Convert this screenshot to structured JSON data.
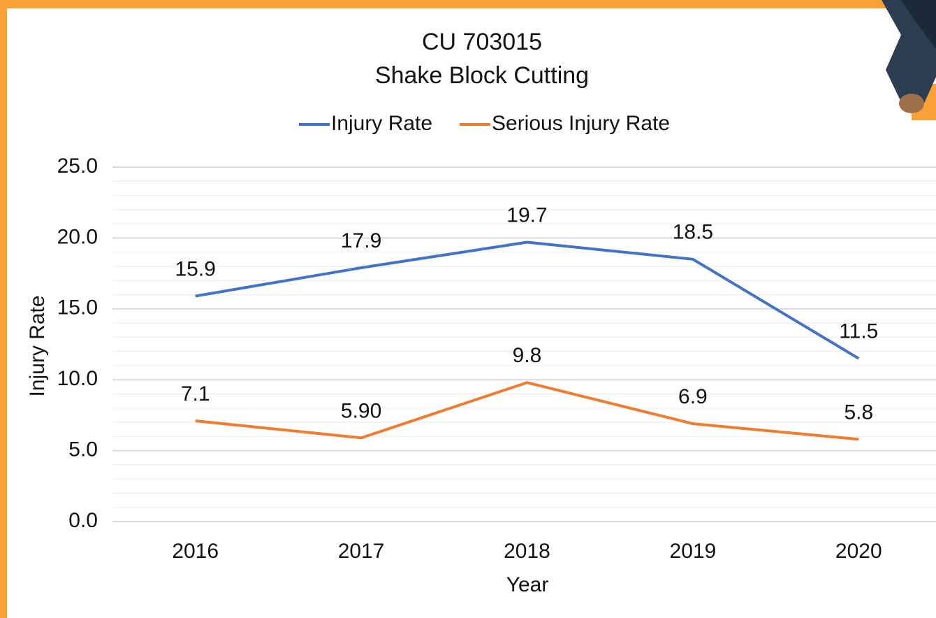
{
  "chart_data": {
    "type": "line",
    "title": [
      "CU 703015",
      "Shake Block Cutting"
    ],
    "x_label": "Year",
    "y_label": "Injury Rate",
    "categories": [
      "2016",
      "2017",
      "2018",
      "2019",
      "2020"
    ],
    "series": [
      {
        "name": "Injury Rate",
        "color": "#4472c4",
        "values": [
          15.9,
          17.9,
          19.7,
          18.5,
          11.5
        ]
      },
      {
        "name": "Serious Injury Rate",
        "color": "#ed7d31",
        "values": [
          7.1,
          5.9,
          9.8,
          6.9,
          5.8
        ],
        "value_labels": [
          "7.1",
          "5.90",
          "9.8",
          "6.9",
          "5.8"
        ]
      }
    ],
    "ylim": [
      0,
      25
    ],
    "yticks": [
      {
        "value": 0,
        "label": "0.0"
      },
      {
        "value": 5,
        "label": "5.0"
      },
      {
        "value": 10,
        "label": "10.0"
      },
      {
        "value": 15,
        "label": "15.0"
      },
      {
        "value": 20,
        "label": "20.0"
      },
      {
        "value": 25,
        "label": "25.0"
      }
    ],
    "minor_yticks": [
      1,
      2,
      3,
      4,
      6,
      7,
      8,
      9,
      11,
      12,
      13,
      14,
      16,
      17,
      18,
      19,
      21,
      22,
      23,
      24
    ],
    "grid": true,
    "legend": "top"
  }
}
